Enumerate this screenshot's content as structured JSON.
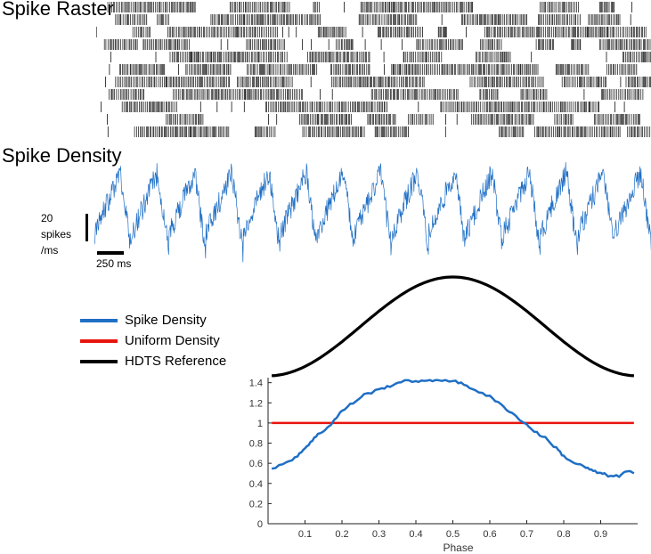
{
  "panels": {
    "raster_label": "Spike Raster",
    "density_label": "Spike Density"
  },
  "scale_bars": {
    "vertical_label": "20 spikes /ms",
    "horizontal_label": "250 ms"
  },
  "colors": {
    "density": "#1f6fc5",
    "uniform": "#e8150e",
    "reference": "#000000",
    "raster": "#111111"
  },
  "chart_data": [
    {
      "type": "raster",
      "title": "Spike Raster",
      "n_trials": 11
    },
    {
      "type": "line",
      "title": "Spike Density",
      "n_cycles": 15,
      "ylabel": "spikes/ms"
    },
    {
      "type": "line",
      "title": "",
      "xlabel": "Phase",
      "ylabel": "",
      "xlim": [
        0,
        1
      ],
      "ylim": [
        0,
        1.45
      ],
      "xticks": [
        "0.1",
        "0.2",
        "0.3",
        "0.4",
        "0.5",
        "0.6",
        "0.7",
        "0.8",
        "0.9"
      ],
      "yticks": [
        "0",
        "0.2",
        "0.4",
        "0.6",
        "0.8",
        "1",
        "1.2",
        "1.4"
      ],
      "legend": [
        "Spike Density",
        "Uniform Density",
        "HDTS Reference"
      ],
      "legend_position": "top-left",
      "series": [
        {
          "name": "Spike Density",
          "x": [
            0.01,
            0.05,
            0.08,
            0.1,
            0.12,
            0.14,
            0.16,
            0.18,
            0.2,
            0.23,
            0.26,
            0.3,
            0.33,
            0.36,
            0.4,
            0.43,
            0.46,
            0.5,
            0.53,
            0.56,
            0.6,
            0.63,
            0.66,
            0.7,
            0.72,
            0.75,
            0.78,
            0.8,
            0.83,
            0.86,
            0.88,
            0.9,
            0.92,
            0.95,
            0.97,
            0.99
          ],
          "values": [
            0.55,
            0.6,
            0.68,
            0.75,
            0.83,
            0.9,
            0.95,
            1.03,
            1.12,
            1.2,
            1.28,
            1.33,
            1.37,
            1.41,
            1.42,
            1.41,
            1.43,
            1.42,
            1.38,
            1.33,
            1.26,
            1.18,
            1.1,
            0.98,
            0.92,
            0.85,
            0.75,
            0.67,
            0.6,
            0.56,
            0.52,
            0.5,
            0.48,
            0.47,
            0.52,
            0.5
          ]
        },
        {
          "name": "Uniform Density",
          "x": [
            0.01,
            0.99
          ],
          "values": [
            1,
            1
          ]
        },
        {
          "name": "HDTS Reference",
          "shape": "cosine",
          "note": "reference cycle peaking at phase 0.5, drawn above the axes"
        }
      ]
    }
  ]
}
